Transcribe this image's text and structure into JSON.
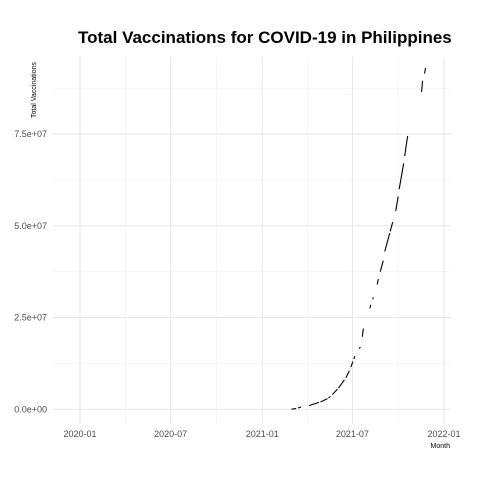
{
  "chart_data": {
    "type": "line",
    "title": "Total Vaccinations for COVID-19 in Philippines",
    "xlabel": "Month",
    "ylabel": "Total Vaccinations",
    "x_ticks": [
      "2020-01",
      "2020-07",
      "2021-01",
      "2021-07",
      "2022-01"
    ],
    "x_range": [
      "2020-01-01",
      "2022-01-01"
    ],
    "y_ticks": [
      "0.0e+00",
      "2.5e+07",
      "5.0e+07",
      "7.5e+07"
    ],
    "y_tick_values": [
      0,
      25000000,
      50000000,
      75000000
    ],
    "ylim": [
      -4000000,
      96000000
    ],
    "grid": true,
    "series": [
      {
        "segments": [
          [
            [
              "2021-03-01",
              30000
            ],
            [
              "2021-03-10",
              200000
            ]
          ],
          [
            [
              "2021-03-14",
              350000
            ],
            [
              "2021-03-20",
              650000
            ]
          ],
          [
            [
              "2021-04-05",
              1000000
            ],
            [
              "2021-04-25",
              1900000
            ]
          ],
          [
            [
              "2021-04-28",
              2000000
            ],
            [
              "2021-05-12",
              2900000
            ]
          ],
          [
            [
              "2021-05-14",
              3100000
            ],
            [
              "2021-05-18",
              3500000
            ]
          ],
          [
            [
              "2021-05-22",
              4000000
            ],
            [
              "2021-06-01",
              5500000
            ]
          ],
          [
            [
              "2021-06-03",
              5800000
            ],
            [
              "2021-06-15",
              8000000
            ]
          ],
          [
            [
              "2021-06-18",
              8600000
            ],
            [
              "2021-06-25",
              10500000
            ]
          ],
          [
            [
              "2021-06-28",
              11500000
            ],
            [
              "2021-07-02",
              13000000
            ]
          ],
          [
            [
              "2021-07-04",
              13700000
            ],
            [
              "2021-07-06",
              14500000
            ]
          ],
          [
            [
              "2021-07-15",
              16500000
            ],
            [
              "2021-07-17",
              17000000
            ]
          ],
          [
            [
              "2021-07-21",
              19800000
            ],
            [
              "2021-07-23",
              22000000
            ]
          ],
          [
            [
              "2021-08-05",
              27500000
            ],
            [
              "2021-08-07",
              28500000
            ]
          ],
          [
            [
              "2021-08-11",
              30000000
            ],
            [
              "2021-08-12",
              30500000
            ]
          ],
          [
            [
              "2021-08-20",
              34000000
            ],
            [
              "2021-08-22",
              35500000
            ]
          ],
          [
            [
              "2021-08-26",
              37500000
            ],
            [
              "2021-09-01",
              40500000
            ]
          ],
          [
            [
              "2021-09-04",
              43000000
            ],
            [
              "2021-09-14",
              48000000
            ]
          ],
          [
            [
              "2021-09-15",
              48500000
            ],
            [
              "2021-09-20",
              51000000
            ]
          ],
          [
            [
              "2021-09-26",
              54000000
            ],
            [
              "2021-10-01",
              58000000
            ]
          ],
          [
            [
              "2021-10-03",
              60000000
            ],
            [
              "2021-10-12",
              67000000
            ]
          ],
          [
            [
              "2021-10-14",
              69000000
            ],
            [
              "2021-10-20",
              74500000
            ]
          ],
          [
            [
              "2021-11-17",
              86500000
            ],
            [
              "2021-11-19",
              89500000
            ]
          ],
          [
            [
              "2021-11-23",
              91500000
            ],
            [
              "2021-11-25",
              93000000
            ]
          ]
        ]
      }
    ]
  }
}
